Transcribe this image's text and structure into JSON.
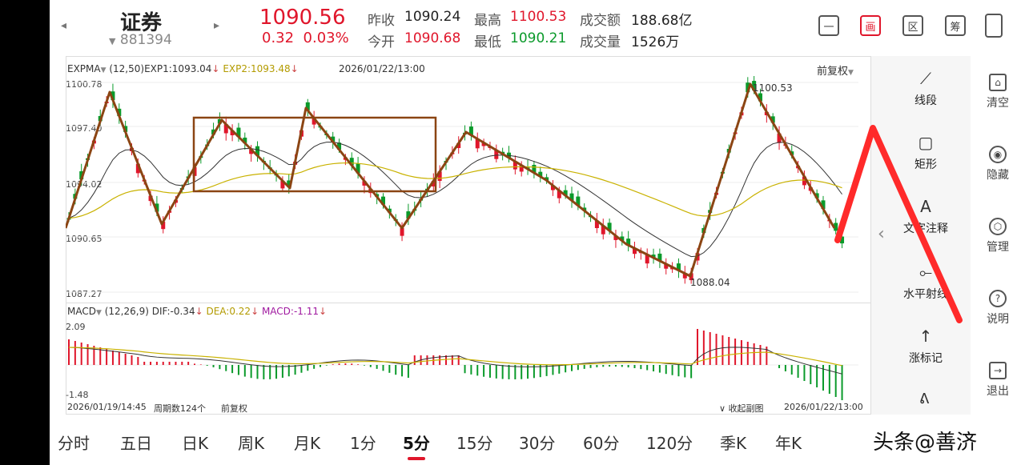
{
  "header": {
    "title": "证券",
    "code": "881394",
    "price": "1090.56",
    "change": "0.32",
    "change_pct": "0.03%",
    "prev_close_label": "昨收",
    "prev_close": "1090.24",
    "open_label": "今开",
    "open": "1090.68",
    "high_label": "最高",
    "high": "1100.53",
    "low_label": "最低",
    "low": "1090.21",
    "amount_label": "成交额",
    "amount": "188.68亿",
    "volume_label": "成交量",
    "volume": "1526万",
    "buttons": [
      "一",
      "画",
      "区",
      "筹"
    ]
  },
  "main_chart": {
    "indicator": "EXPMA",
    "params": "(12,50)",
    "exp1": "EXP1:1093.04",
    "exp2": "EXP2:1093.48",
    "timestamp": "2026/01/22/13:00",
    "adjust": "前复权",
    "price_labels": [
      "1100.78",
      "1097.40",
      "1094.02",
      "1090.65",
      "1087.27"
    ],
    "high_mark": "1100.53",
    "low_mark": "1088.04"
  },
  "macd": {
    "indicator": "MACD",
    "params": "(12,26,9)",
    "dif": "DIF:-0.34",
    "dea": "DEA:0.22",
    "macd": "MACD:-1.11",
    "top": "2.09",
    "bottom": "-1.48"
  },
  "footer_info": {
    "start": "2026/01/19/14:45",
    "periods": "周期数124个",
    "adjust": "前复权",
    "collapse": "收起副图",
    "end": "2026/01/22/13:00"
  },
  "tools": [
    {
      "icon": "line-segment-icon",
      "label": "线段"
    },
    {
      "icon": "rectangle-icon",
      "label": "矩形"
    },
    {
      "icon": "text-icon",
      "label": "文字注释"
    },
    {
      "icon": "horizontal-ray-icon",
      "label": "水平射线"
    },
    {
      "icon": "up-arrow-icon",
      "label": "涨标记"
    }
  ],
  "side": [
    {
      "icon": "basket-icon",
      "label": "清空"
    },
    {
      "icon": "eye-icon",
      "label": "隐藏"
    },
    {
      "icon": "gear-icon",
      "label": "管理"
    },
    {
      "icon": "question-icon",
      "label": "说明"
    },
    {
      "icon": "exit-icon",
      "label": "退出"
    }
  ],
  "tabs": [
    "分时",
    "五日",
    "日K",
    "周K",
    "月K",
    "1分",
    "5分",
    "15分",
    "30分",
    "60分",
    "120分",
    "季K",
    "年K"
  ],
  "active_tab": "5分",
  "watermark": "头条@善济",
  "colors": {
    "up": "#e0162b",
    "down": "#0a9a2a",
    "drawing": "#8b4513",
    "annotation": "#ff2a2a"
  }
}
